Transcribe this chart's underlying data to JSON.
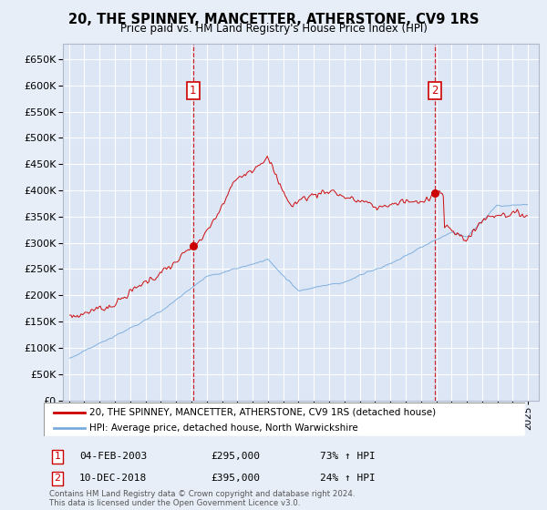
{
  "title": "20, THE SPINNEY, MANCETTER, ATHERSTONE, CV9 1RS",
  "subtitle": "Price paid vs. HM Land Registry's House Price Index (HPI)",
  "bg_color": "#e8eef8",
  "plot_bg_color": "#dde6f5",
  "grid_color": "#ffffff",
  "red_color": "#cc0000",
  "blue_color": "#7aaddd",
  "ylim": [
    0,
    680000
  ],
  "yticks": [
    0,
    50000,
    100000,
    150000,
    200000,
    250000,
    300000,
    350000,
    400000,
    450000,
    500000,
    550000,
    600000,
    650000
  ],
  "purchase1_year": 2003.1,
  "purchase1_price": 295000,
  "purchase2_year": 2018.92,
  "purchase2_price": 395000,
  "legend_red": "20, THE SPINNEY, MANCETTER, ATHERSTONE, CV9 1RS (detached house)",
  "legend_blue": "HPI: Average price, detached house, North Warwickshire",
  "footer": "Contains HM Land Registry data © Crown copyright and database right 2024.\nThis data is licensed under the Open Government Licence v3.0."
}
